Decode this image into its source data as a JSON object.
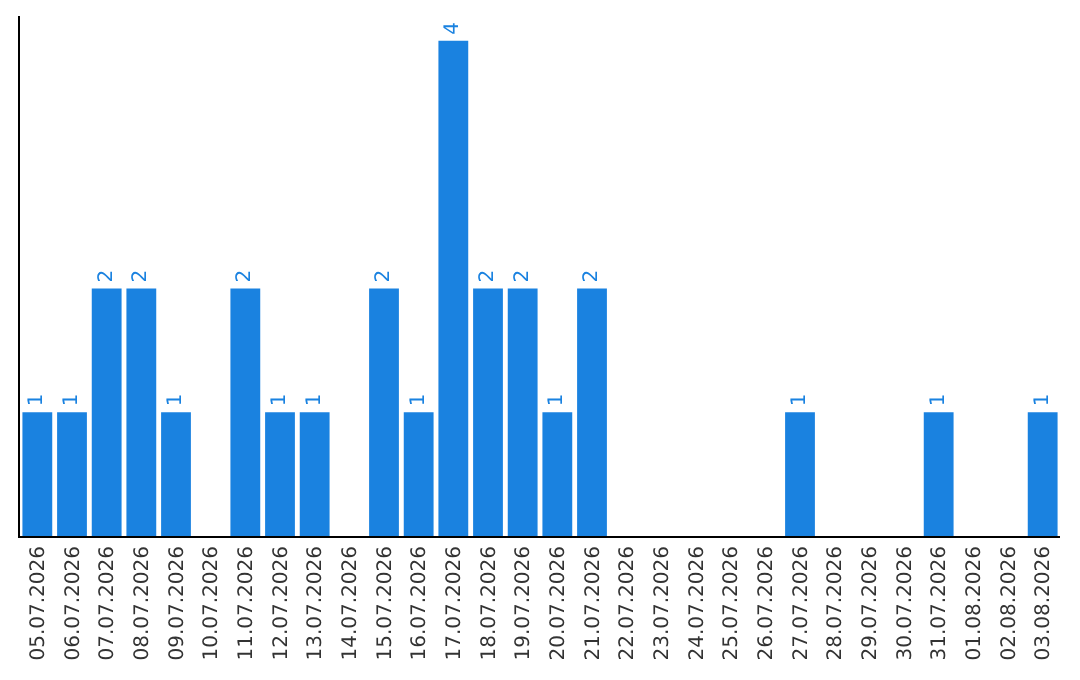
{
  "chart_data": {
    "type": "bar",
    "categories": [
      "05.07.2026",
      "06.07.2026",
      "07.07.2026",
      "08.07.2026",
      "09.07.2026",
      "10.07.2026",
      "11.07.2026",
      "12.07.2026",
      "13.07.2026",
      "14.07.2026",
      "15.07.2026",
      "16.07.2026",
      "17.07.2026",
      "18.07.2026",
      "19.07.2026",
      "20.07.2026",
      "21.07.2026",
      "22.07.2026",
      "23.07.2026",
      "24.07.2026",
      "25.07.2026",
      "26.07.2026",
      "27.07.2026",
      "28.07.2026",
      "29.07.2026",
      "30.07.2026",
      "31.07.2026",
      "01.08.2026",
      "02.08.2026",
      "03.08.2026"
    ],
    "values": [
      1,
      1,
      2,
      2,
      1,
      0,
      2,
      1,
      1,
      0,
      2,
      1,
      4,
      2,
      2,
      1,
      2,
      0,
      0,
      0,
      0,
      0,
      1,
      0,
      0,
      0,
      1,
      0,
      0,
      1
    ],
    "value_labels": [
      "1",
      "1",
      "2",
      "2",
      "1",
      null,
      "2",
      "1",
      "1",
      null,
      "2",
      "1",
      "4",
      "2",
      "2",
      "1",
      "2",
      null,
      null,
      null,
      null,
      null,
      "1",
      null,
      null,
      null,
      "1",
      null,
      null,
      "1"
    ],
    "color": "#1a82e0",
    "ylim": [
      0,
      4.2
    ],
    "tick_labels": "x"
  }
}
